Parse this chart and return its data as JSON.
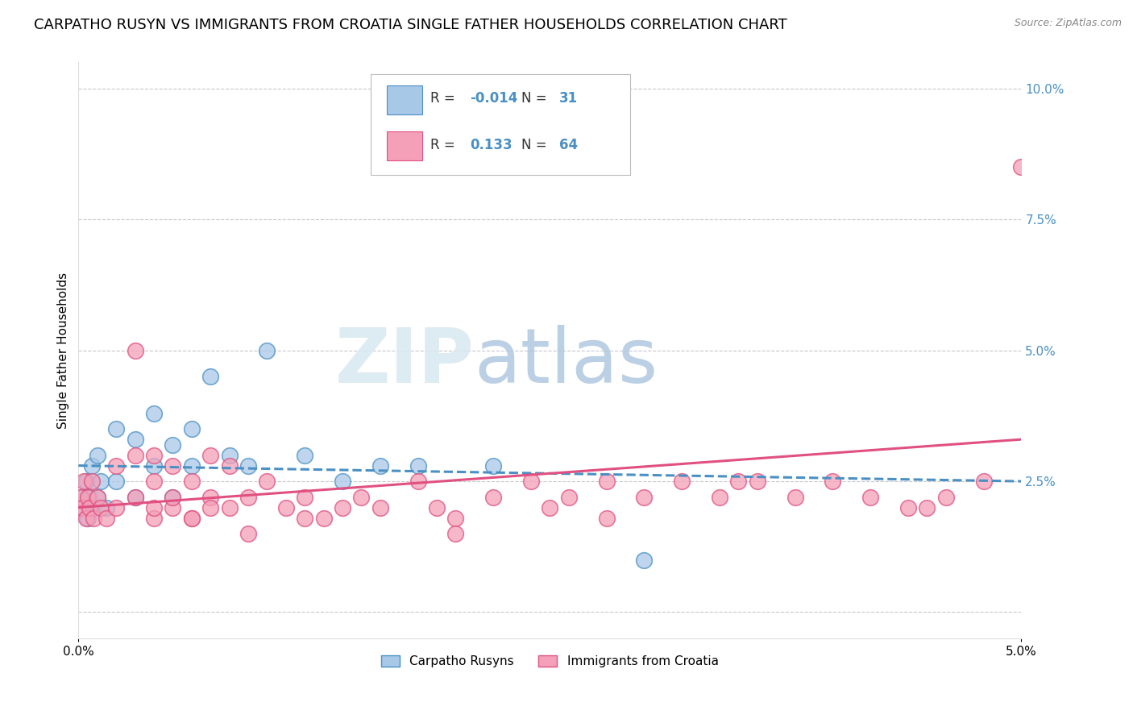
{
  "title": "CARPATHO RUSYN VS IMMIGRANTS FROM CROATIA SINGLE FATHER HOUSEHOLDS CORRELATION CHART",
  "source": "Source: ZipAtlas.com",
  "ylabel": "Single Father Households",
  "xlim": [
    0.0,
    0.05
  ],
  "ylim": [
    -0.005,
    0.105
  ],
  "yticks": [
    0.0,
    0.025,
    0.05,
    0.075,
    0.1
  ],
  "ytick_labels": [
    "",
    "2.5%",
    "5.0%",
    "7.5%",
    "10.0%"
  ],
  "color_blue": "#a8c8e8",
  "color_pink": "#f4a0b8",
  "line_color_blue": "#4a90c4",
  "line_color_pink": "#e05080",
  "label1": "Carpatho Rusyns",
  "label2": "Immigrants from Croatia",
  "watermark_zip": "ZIP",
  "watermark_atlas": "atlas",
  "blue_scatter_x": [
    0.0002,
    0.0003,
    0.0004,
    0.0005,
    0.0006,
    0.0007,
    0.0008,
    0.001,
    0.001,
    0.0012,
    0.0015,
    0.002,
    0.002,
    0.003,
    0.003,
    0.004,
    0.004,
    0.005,
    0.005,
    0.006,
    0.006,
    0.007,
    0.008,
    0.009,
    0.01,
    0.012,
    0.014,
    0.016,
    0.018,
    0.022,
    0.03
  ],
  "blue_scatter_y": [
    0.022,
    0.02,
    0.025,
    0.018,
    0.022,
    0.028,
    0.02,
    0.03,
    0.022,
    0.025,
    0.02,
    0.035,
    0.025,
    0.033,
    0.022,
    0.038,
    0.028,
    0.032,
    0.022,
    0.035,
    0.028,
    0.045,
    0.03,
    0.028,
    0.05,
    0.03,
    0.025,
    0.028,
    0.028,
    0.028,
    0.01
  ],
  "pink_scatter_x": [
    0.0001,
    0.0002,
    0.0003,
    0.0004,
    0.0005,
    0.0006,
    0.0007,
    0.0008,
    0.001,
    0.0012,
    0.0015,
    0.002,
    0.002,
    0.003,
    0.003,
    0.004,
    0.004,
    0.005,
    0.005,
    0.006,
    0.006,
    0.007,
    0.007,
    0.008,
    0.008,
    0.009,
    0.01,
    0.011,
    0.012,
    0.013,
    0.014,
    0.015,
    0.016,
    0.018,
    0.019,
    0.02,
    0.022,
    0.024,
    0.025,
    0.026,
    0.028,
    0.03,
    0.032,
    0.034,
    0.036,
    0.038,
    0.04,
    0.042,
    0.044,
    0.046,
    0.048,
    0.003,
    0.004,
    0.005,
    0.006,
    0.007,
    0.009,
    0.012,
    0.02,
    0.028,
    0.035,
    0.045,
    0.05,
    0.004
  ],
  "pink_scatter_y": [
    0.022,
    0.02,
    0.025,
    0.018,
    0.022,
    0.02,
    0.025,
    0.018,
    0.022,
    0.02,
    0.018,
    0.028,
    0.02,
    0.03,
    0.022,
    0.025,
    0.018,
    0.028,
    0.02,
    0.025,
    0.018,
    0.03,
    0.022,
    0.028,
    0.02,
    0.022,
    0.025,
    0.02,
    0.022,
    0.018,
    0.02,
    0.022,
    0.02,
    0.025,
    0.02,
    0.018,
    0.022,
    0.025,
    0.02,
    0.022,
    0.025,
    0.022,
    0.025,
    0.022,
    0.025,
    0.022,
    0.025,
    0.022,
    0.02,
    0.022,
    0.025,
    0.05,
    0.03,
    0.022,
    0.018,
    0.02,
    0.015,
    0.018,
    0.015,
    0.018,
    0.025,
    0.02,
    0.085,
    0.02
  ],
  "blue_line_x": [
    0.0,
    0.05
  ],
  "blue_line_y": [
    0.028,
    0.025
  ],
  "pink_line_x": [
    0.0,
    0.05
  ],
  "pink_line_y": [
    0.02,
    0.033
  ],
  "background_color": "#ffffff",
  "grid_color": "#c8c8d0",
  "title_fontsize": 13,
  "axis_fontsize": 11,
  "tick_fontsize": 11,
  "r_color": "#4a90c4",
  "legend_text_color": "#333333"
}
